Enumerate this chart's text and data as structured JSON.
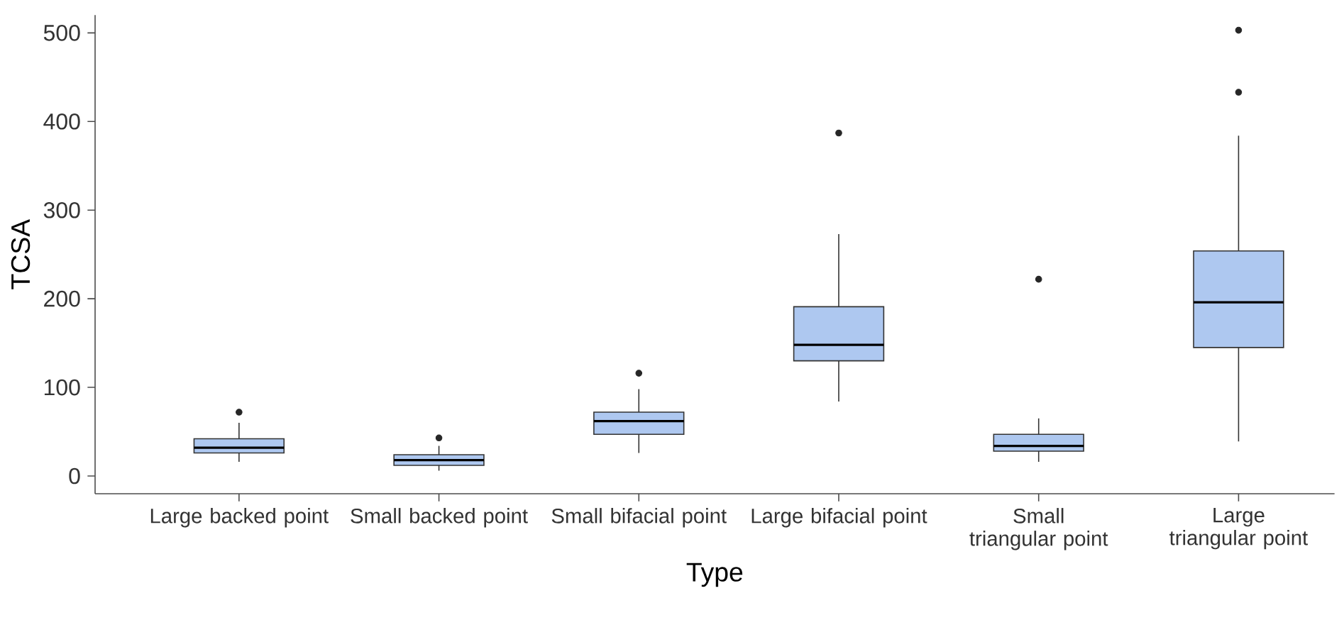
{
  "chart_data": {
    "type": "box",
    "xlabel": "Type",
    "ylabel": "TCSA",
    "categories": [
      "Large backed point",
      "Small  backed point",
      "Small bifacial point",
      "Large bifacial point",
      "Small triangular point",
      "Large triangular point"
    ],
    "color": "#aec8f0",
    "ylim": [
      -20,
      520
    ],
    "yticks": [
      0,
      100,
      200,
      300,
      400,
      500
    ],
    "boxes": [
      {
        "low": 16,
        "q1": 26,
        "median": 32,
        "q3": 42,
        "high": 60,
        "outliers": [
          72
        ]
      },
      {
        "low": 6,
        "q1": 12,
        "median": 18,
        "q3": 24,
        "high": 34,
        "outliers": [
          43
        ]
      },
      {
        "low": 26,
        "q1": 47,
        "median": 62,
        "q3": 72,
        "high": 98,
        "outliers": [
          116
        ]
      },
      {
        "low": 84,
        "q1": 130,
        "median": 148,
        "q3": 191,
        "high": 273,
        "outliers": [
          387
        ]
      },
      {
        "low": 16,
        "q1": 28,
        "median": 34,
        "q3": 47,
        "high": 65,
        "outliers": [
          222
        ]
      },
      {
        "low": 39,
        "q1": 145,
        "median": 196,
        "q3": 254,
        "high": 384,
        "outliers": [
          433,
          503
        ]
      }
    ]
  }
}
